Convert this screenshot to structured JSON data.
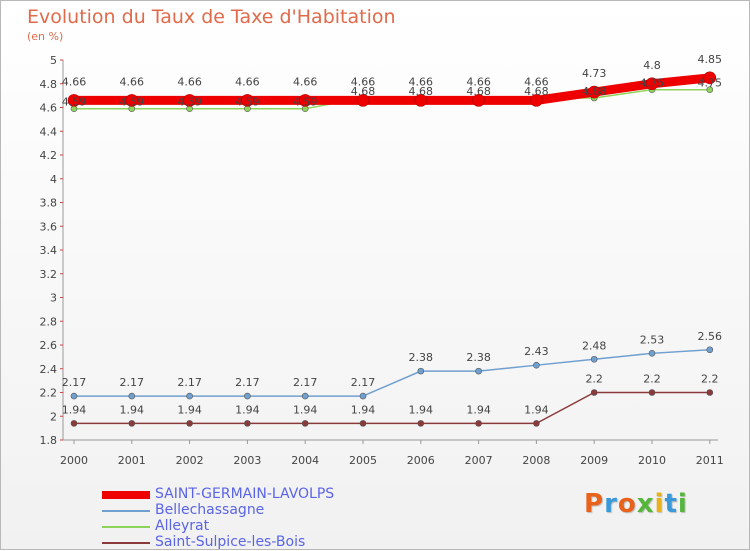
{
  "title": "Evolution du Taux de Taxe d'Habitation",
  "unit": "(en %)",
  "logo": {
    "text": "Proxiti",
    "colors": [
      "#e8621c",
      "#3a9ad9",
      "#e8621c",
      "#56b63c",
      "#e8b21c",
      "#3a9ad9",
      "#56b63c"
    ]
  },
  "chart_data": {
    "type": "line",
    "x": [
      "2000",
      "2001",
      "2002",
      "2003",
      "2004",
      "2005",
      "2006",
      "2007",
      "2008",
      "2009",
      "2010",
      "2011"
    ],
    "ylim": [
      1.8,
      5
    ],
    "yticks": [
      "1.8",
      "2",
      "2.2",
      "2.4",
      "2.6",
      "2.8",
      "3",
      "3.2",
      "3.4",
      "3.6",
      "3.8",
      "4",
      "4.2",
      "4.4",
      "4.6",
      "4.8",
      "5"
    ],
    "grid": false,
    "legend_position": "bottom-left",
    "series": [
      {
        "name": "SAINT-GERMAIN-LAVOLPS",
        "color": "#ee0000",
        "width": 9,
        "marker": 6,
        "values": [
          4.66,
          4.66,
          4.66,
          4.66,
          4.66,
          4.66,
          4.66,
          4.66,
          4.66,
          4.73,
          4.8,
          4.85
        ],
        "labels": [
          "4.66",
          "4.66",
          "4.66",
          "4.66",
          "4.66",
          "4.66",
          "4.66",
          "4.66",
          "4.66",
          "4.73",
          "4.8",
          "4.85"
        ]
      },
      {
        "name": "Bellechassagne",
        "color": "#6fa0cf",
        "width": 1.5,
        "marker": 3,
        "values": [
          2.17,
          2.17,
          2.17,
          2.17,
          2.17,
          2.17,
          2.38,
          2.38,
          2.43,
          2.48,
          2.53,
          2.56
        ],
        "labels": [
          "2.17",
          "2.17",
          "2.17",
          "2.17",
          "2.17",
          "2.17",
          "2.38",
          "2.38",
          "2.43",
          "2.48",
          "2.53",
          "2.56"
        ]
      },
      {
        "name": "Alleyrat",
        "color": "#8fd45a",
        "width": 1.5,
        "marker": 3,
        "values": [
          4.59,
          4.59,
          4.59,
          4.59,
          4.59,
          4.68,
          4.68,
          4.68,
          4.68,
          4.68,
          4.75,
          4.75
        ],
        "labels": [
          "4.59",
          "4.59",
          "4.59",
          "4.59",
          "4.59",
          "4.68",
          "4.68",
          "4.68",
          "4.68",
          "4.68",
          "4.75",
          "4.75"
        ]
      },
      {
        "name": "Saint-Sulpice-les-Bois",
        "color": "#8a3a3a",
        "width": 1.5,
        "marker": 3,
        "values": [
          1.94,
          1.94,
          1.94,
          1.94,
          1.94,
          1.94,
          1.94,
          1.94,
          1.94,
          2.2,
          2.2,
          2.2
        ],
        "labels": [
          "1.94",
          "1.94",
          "1.94",
          "1.94",
          "1.94",
          "1.94",
          "1.94",
          "1.94",
          "1.94",
          "2.2",
          "2.2",
          "2.2"
        ]
      }
    ]
  }
}
